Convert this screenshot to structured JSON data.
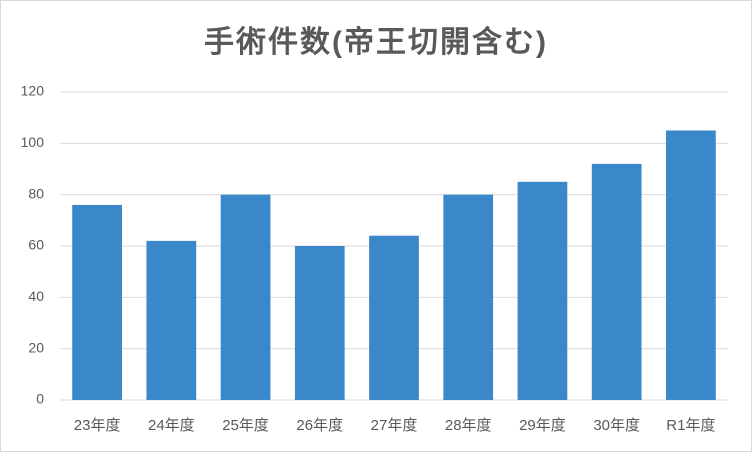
{
  "chart_data": {
    "type": "bar",
    "title": "手術件数(帝王切開含む)",
    "categories": [
      "23年度",
      "24年度",
      "25年度",
      "26年度",
      "27年度",
      "28年度",
      "29年度",
      "30年度",
      "R1年度"
    ],
    "values": [
      76,
      62,
      80,
      60,
      64,
      80,
      85,
      92,
      105
    ],
    "color": "#3a87c9",
    "ylim": [
      0,
      120
    ],
    "yticks": [
      0,
      20,
      40,
      60,
      80,
      100,
      120
    ],
    "grid": true
  }
}
